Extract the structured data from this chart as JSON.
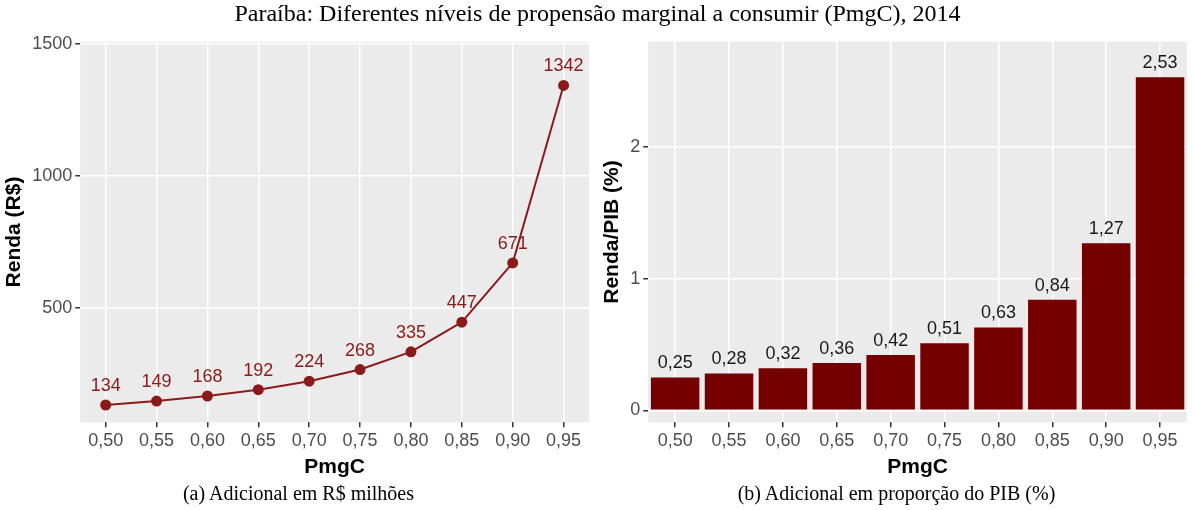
{
  "chart_data": [
    {
      "type": "line",
      "title": "Paraíba: Diferentes níveis de propensão marginal a consumir (PmgC), 2014",
      "xlabel": "PmgC",
      "ylabel": "Renda (R$)",
      "categories": [
        "0,50",
        "0,55",
        "0,60",
        "0,65",
        "0,70",
        "0,75",
        "0,80",
        "0,85",
        "0,90",
        "0,95"
      ],
      "series": [
        {
          "color": "#8b1a1a",
          "values": [
            134,
            149,
            168,
            192,
            224,
            268,
            335,
            447,
            671,
            1342
          ]
        }
      ],
      "ylim": [
        69,
        1507
      ],
      "yticks": [
        500,
        1000,
        1500
      ],
      "grid": true,
      "marker": "circle",
      "data_labels": true,
      "annotations": [
        "(a) Adicional em R$ milhões"
      ]
    },
    {
      "type": "bar",
      "xlabel": "PmgC",
      "ylabel": "Renda/PIB (%)",
      "categories": [
        "0,50",
        "0,55",
        "0,60",
        "0,65",
        "0,70",
        "0,75",
        "0,80",
        "0,85",
        "0,90",
        "0,95"
      ],
      "values": [
        0.25,
        0.28,
        0.32,
        0.36,
        0.42,
        0.51,
        0.63,
        0.84,
        1.27,
        2.53
      ],
      "color": "#750000",
      "value_labels": [
        "0,25",
        "0,28",
        "0,32",
        "0,36",
        "0,42",
        "0,51",
        "0,63",
        "0,84",
        "1,27",
        "2,53"
      ],
      "ylim": [
        -0.09,
        2.8
      ],
      "yticks": [
        0,
        1,
        2
      ],
      "grid": true,
      "annotations": [
        "(b) Adicional em proporção do PIB (%)"
      ]
    }
  ]
}
